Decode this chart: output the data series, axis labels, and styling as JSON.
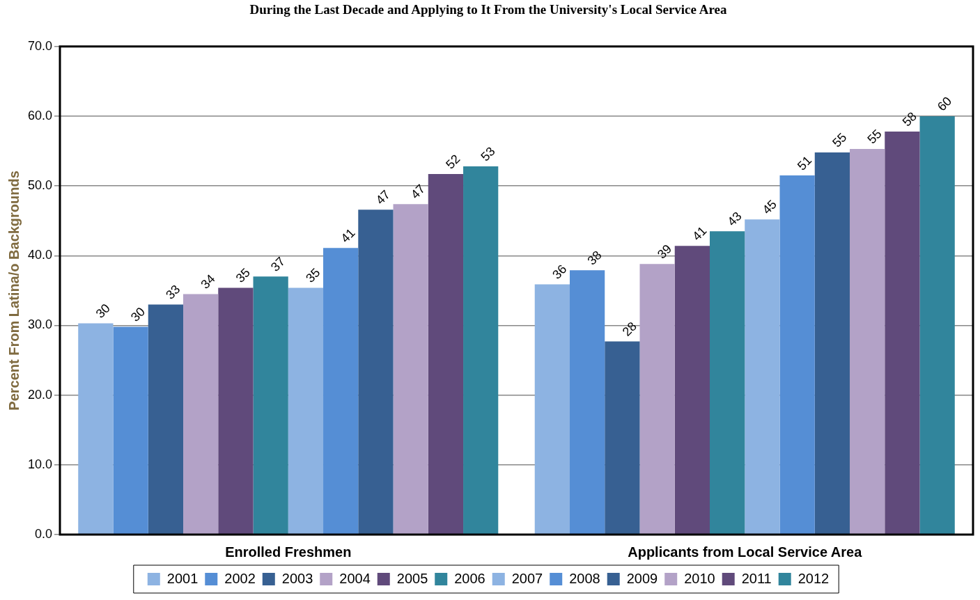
{
  "chart_data": {
    "type": "bar",
    "title": "During the Last Decade and Applying to It From the University's Local Service Area",
    "ylabel": "Percent From Latina/o Backgrounds",
    "categories": [
      "Enrolled Freshmen",
      "Applicants from Local Service Area"
    ],
    "series": [
      {
        "name": "2001",
        "color": "#8db3e2",
        "values": [
          30.3,
          35.9
        ],
        "value_labels": [
          "30",
          "36"
        ]
      },
      {
        "name": "2002",
        "color": "#558ed5",
        "values": [
          29.8,
          37.9
        ],
        "value_labels": [
          "30",
          "38"
        ]
      },
      {
        "name": "2003",
        "color": "#376092",
        "values": [
          33.0,
          27.7
        ],
        "value_labels": [
          "33",
          "28"
        ]
      },
      {
        "name": "2004",
        "color": "#b3a2c7",
        "values": [
          34.5,
          38.8
        ],
        "value_labels": [
          "34",
          "39"
        ]
      },
      {
        "name": "2005",
        "color": "#604a7b",
        "values": [
          35.4,
          41.4
        ],
        "value_labels": [
          "35",
          "41"
        ]
      },
      {
        "name": "2006",
        "color": "#31859c",
        "values": [
          37.0,
          43.5
        ],
        "value_labels": [
          "37",
          "43"
        ]
      },
      {
        "name": "2007",
        "color": "#8db3e2",
        "values": [
          35.4,
          45.2
        ],
        "value_labels": [
          "35",
          "45"
        ]
      },
      {
        "name": "2008",
        "color": "#558ed5",
        "values": [
          41.1,
          51.5
        ],
        "value_labels": [
          "41",
          "51"
        ]
      },
      {
        "name": "2009",
        "color": "#376092",
        "values": [
          46.6,
          54.8
        ],
        "value_labels": [
          "47",
          "55"
        ]
      },
      {
        "name": "2010",
        "color": "#b3a2c7",
        "values": [
          47.4,
          55.3
        ],
        "value_labels": [
          "47",
          "55"
        ]
      },
      {
        "name": "2011",
        "color": "#604a7b",
        "values": [
          51.7,
          57.8
        ],
        "value_labels": [
          "52",
          "58"
        ]
      },
      {
        "name": "2012",
        "color": "#31859c",
        "values": [
          52.8,
          60.0
        ],
        "value_labels": [
          "53",
          "60"
        ]
      }
    ],
    "ylim": [
      0,
      70
    ],
    "yticks": [
      {
        "value": 0,
        "label": "0.0"
      },
      {
        "value": 10,
        "label": "10.0"
      },
      {
        "value": 20,
        "label": "20.0"
      },
      {
        "value": 30,
        "label": "30.0"
      },
      {
        "value": 40,
        "label": "40.0"
      },
      {
        "value": 50,
        "label": "50.0"
      },
      {
        "value": 60,
        "label": "60.0"
      },
      {
        "value": 70,
        "label": "70.0"
      }
    ],
    "grid": "y",
    "legend": "bottom"
  }
}
